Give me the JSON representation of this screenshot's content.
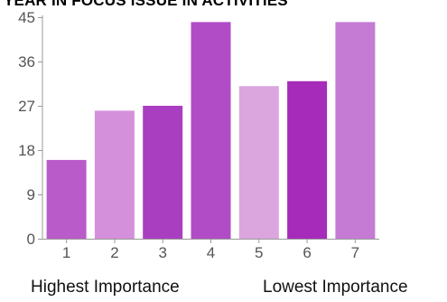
{
  "chart_data": {
    "type": "bar",
    "title": "YEAR IN FOCUS ISSUE IN ACTIVITIES",
    "categories": [
      "1",
      "2",
      "3",
      "4",
      "5",
      "6",
      "7"
    ],
    "values": [
      16,
      26,
      27,
      44,
      31,
      32,
      44
    ],
    "yticks": [
      "0",
      "9",
      "18",
      "27",
      "36",
      "45"
    ],
    "ylim": [
      0,
      45
    ],
    "grid": false,
    "legend": "none",
    "bar_colors": [
      "#b95cc9",
      "#d590db",
      "#a93fc0",
      "#b14cc6",
      "#dba6de",
      "#a62bba",
      "#c57bd4"
    ],
    "axis_color": "#999999",
    "tick_label_color": "#555555"
  },
  "captions": {
    "left": "Highest Importance",
    "right": "Lowest Importance"
  }
}
